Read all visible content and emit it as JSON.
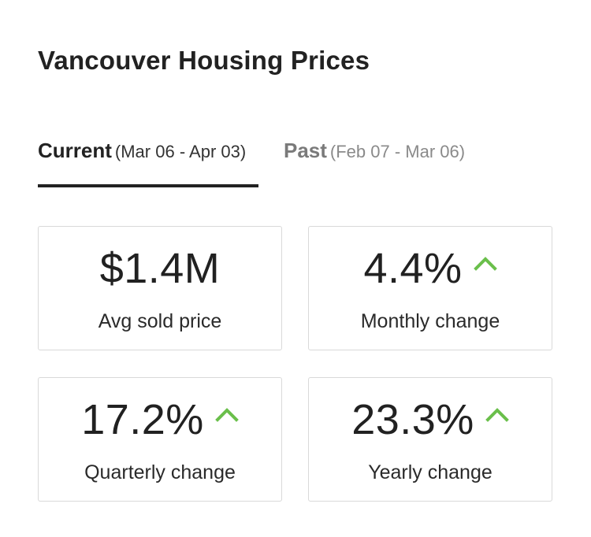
{
  "title": "Vancouver Housing Prices",
  "tabs": [
    {
      "label": "Current",
      "range": "(Mar 06 - Apr 03)",
      "selected": true
    },
    {
      "label": "Past",
      "range": "(Feb 07 - Mar 06)",
      "selected": false
    }
  ],
  "cards": [
    {
      "value": "$1.4M",
      "label": "Avg sold price",
      "trend": "none"
    },
    {
      "value": "4.4%",
      "label": "Monthly change",
      "trend": "up"
    },
    {
      "value": "17.2%",
      "label": "Quarterly change",
      "trend": "up"
    },
    {
      "value": "23.3%",
      "label": "Yearly change",
      "trend": "up"
    }
  ],
  "colors": {
    "trend_up": "#6abf4b",
    "tab_active": "#222222",
    "tab_inactive": "#7a7a7a",
    "card_border": "#d9d9d9"
  },
  "icons": {
    "trend_up": "chevron-up-icon"
  }
}
